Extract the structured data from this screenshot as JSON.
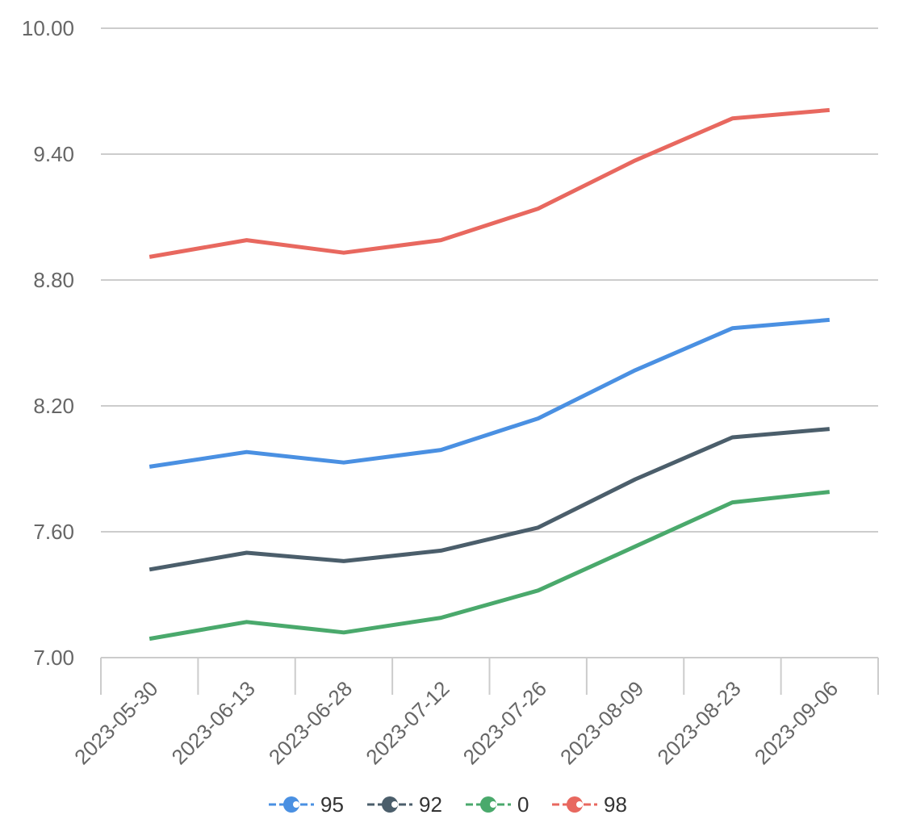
{
  "chart_data": {
    "type": "line",
    "x": [
      "2023-05-30",
      "2023-06-13",
      "2023-06-28",
      "2023-07-12",
      "2023-07-26",
      "2023-08-09",
      "2023-08-23",
      "2023-09-06"
    ],
    "ylim": [
      7.0,
      10.0
    ],
    "yticks": [
      "7.00",
      "7.60",
      "8.20",
      "8.80",
      "9.40",
      "10.00"
    ],
    "grid": true,
    "legend_position": "bottom-center",
    "series": [
      {
        "name": "95",
        "color": "#4a90e2",
        "values": [
          7.91,
          7.98,
          7.93,
          7.99,
          8.14,
          8.37,
          8.57,
          8.61
        ]
      },
      {
        "name": "92",
        "color": "#4b5e6b",
        "values": [
          7.42,
          7.5,
          7.46,
          7.51,
          7.62,
          7.85,
          8.05,
          8.09
        ]
      },
      {
        "name": "0",
        "color": "#4aa96c",
        "values": [
          7.09,
          7.17,
          7.12,
          7.19,
          7.32,
          7.53,
          7.74,
          7.79
        ]
      },
      {
        "name": "98",
        "color": "#e8685f",
        "values": [
          8.91,
          8.99,
          8.93,
          8.99,
          9.14,
          9.37,
          9.57,
          9.61
        ]
      }
    ]
  }
}
